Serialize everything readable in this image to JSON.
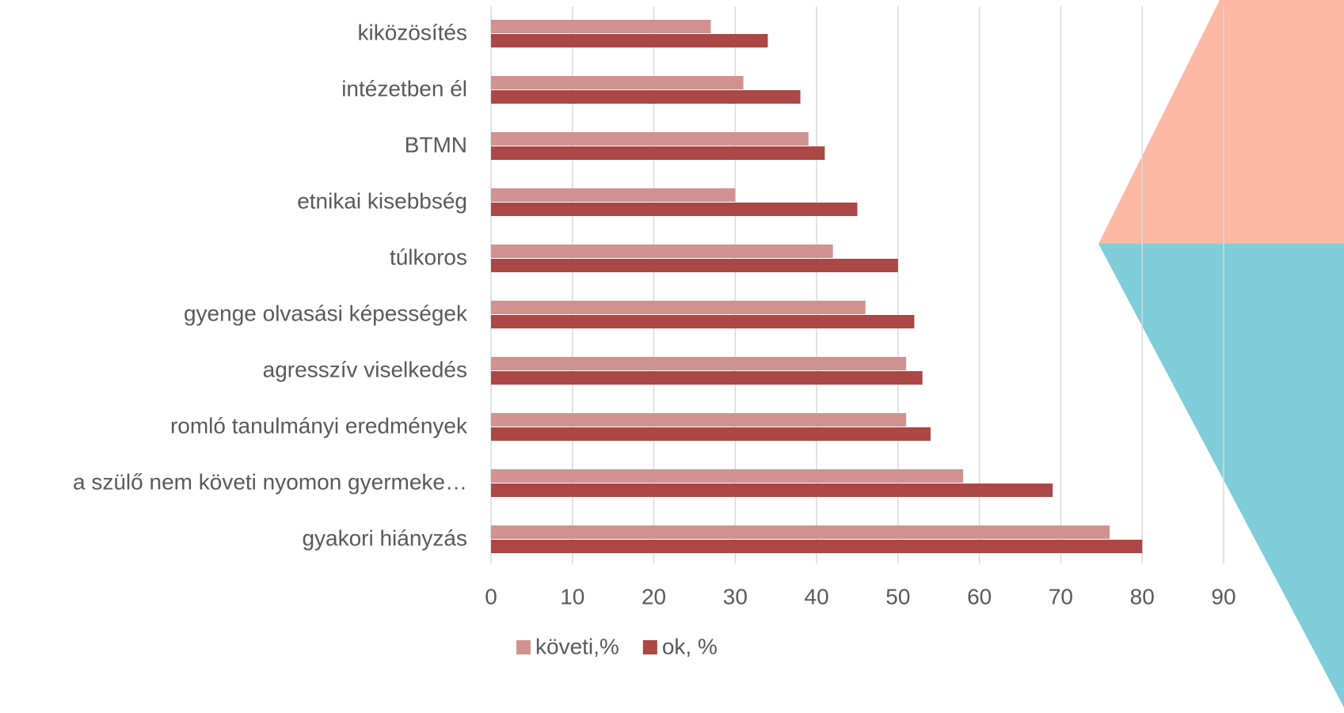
{
  "chart_data": {
    "type": "bar",
    "orientation": "horizontal",
    "categories": [
      "kiközösítés",
      "intézetben él",
      "BTMN",
      "etnikai kisebbség",
      "túlkoros",
      "gyenge olvasási képességek",
      "agresszív viselkedés",
      "romló tanulmányi eredmények",
      "a szülő nem követi nyomon gyermeke…",
      "gyakori hiányzás"
    ],
    "series": [
      {
        "name": "követi,%",
        "color": "#d09290",
        "values": [
          27,
          31,
          39,
          30,
          42,
          46,
          51,
          51,
          58,
          76
        ]
      },
      {
        "name": "ok, %",
        "color": "#ab4744",
        "values": [
          34,
          38,
          41,
          45,
          50,
          52,
          53,
          54,
          69,
          80
        ]
      }
    ],
    "xlim": [
      0,
      90
    ],
    "xticks": [
      0,
      10,
      20,
      30,
      40,
      50,
      60,
      70,
      80,
      90
    ],
    "grid": true,
    "legend": "bottom"
  }
}
